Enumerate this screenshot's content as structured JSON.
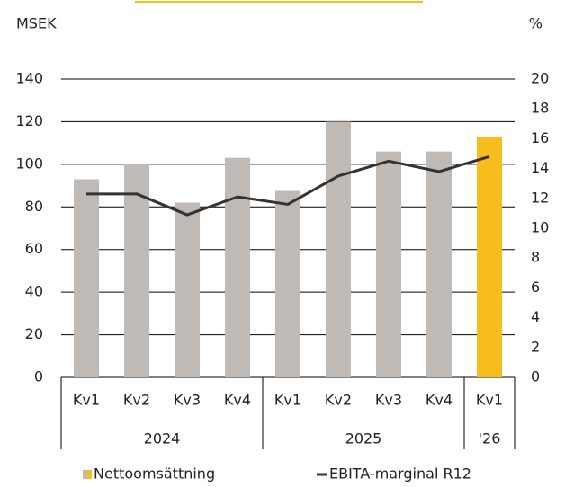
{
  "chart_data": {
    "type": "bar_line",
    "ylabel": "MSEK",
    "y2label": "%",
    "groups": [
      {
        "name": "2024",
        "categories": [
          "Kv1",
          "Kv2",
          "Kv3",
          "Kv4"
        ]
      },
      {
        "name": "2025",
        "categories": [
          "Kv1",
          "Kv2",
          "Kv3",
          "Kv4"
        ]
      },
      {
        "name": "'26",
        "categories": [
          "Kv1"
        ]
      }
    ],
    "series": [
      {
        "name": "Nettoomsättning",
        "type": "bar",
        "color": "#bfbab5",
        "colors": [
          "#bfbab5",
          "#bfbab5",
          "#bfbab5",
          "#bfbab5",
          "#bfbab5",
          "#bfbab5",
          "#bfbab5",
          "#bfbab5",
          "#f7bd1c"
        ],
        "values": [
          93,
          100,
          82,
          103,
          87.5,
          120,
          106,
          106,
          113
        ]
      },
      {
        "name": "EBITA-marginal R12",
        "type": "line",
        "axis": "y2",
        "color": "#333333",
        "values": [
          12.3,
          12.3,
          10.9,
          12.1,
          11.6,
          13.5,
          14.5,
          13.8,
          14.8
        ]
      }
    ],
    "ylim": [
      0,
      140
    ],
    "yticks": [
      0,
      20,
      40,
      60,
      80,
      100,
      120,
      140
    ],
    "y2lim": [
      0,
      20
    ],
    "y2ticks": [
      0,
      2,
      4,
      6,
      8,
      10,
      12,
      14,
      16,
      18,
      20
    ],
    "grid": true
  }
}
